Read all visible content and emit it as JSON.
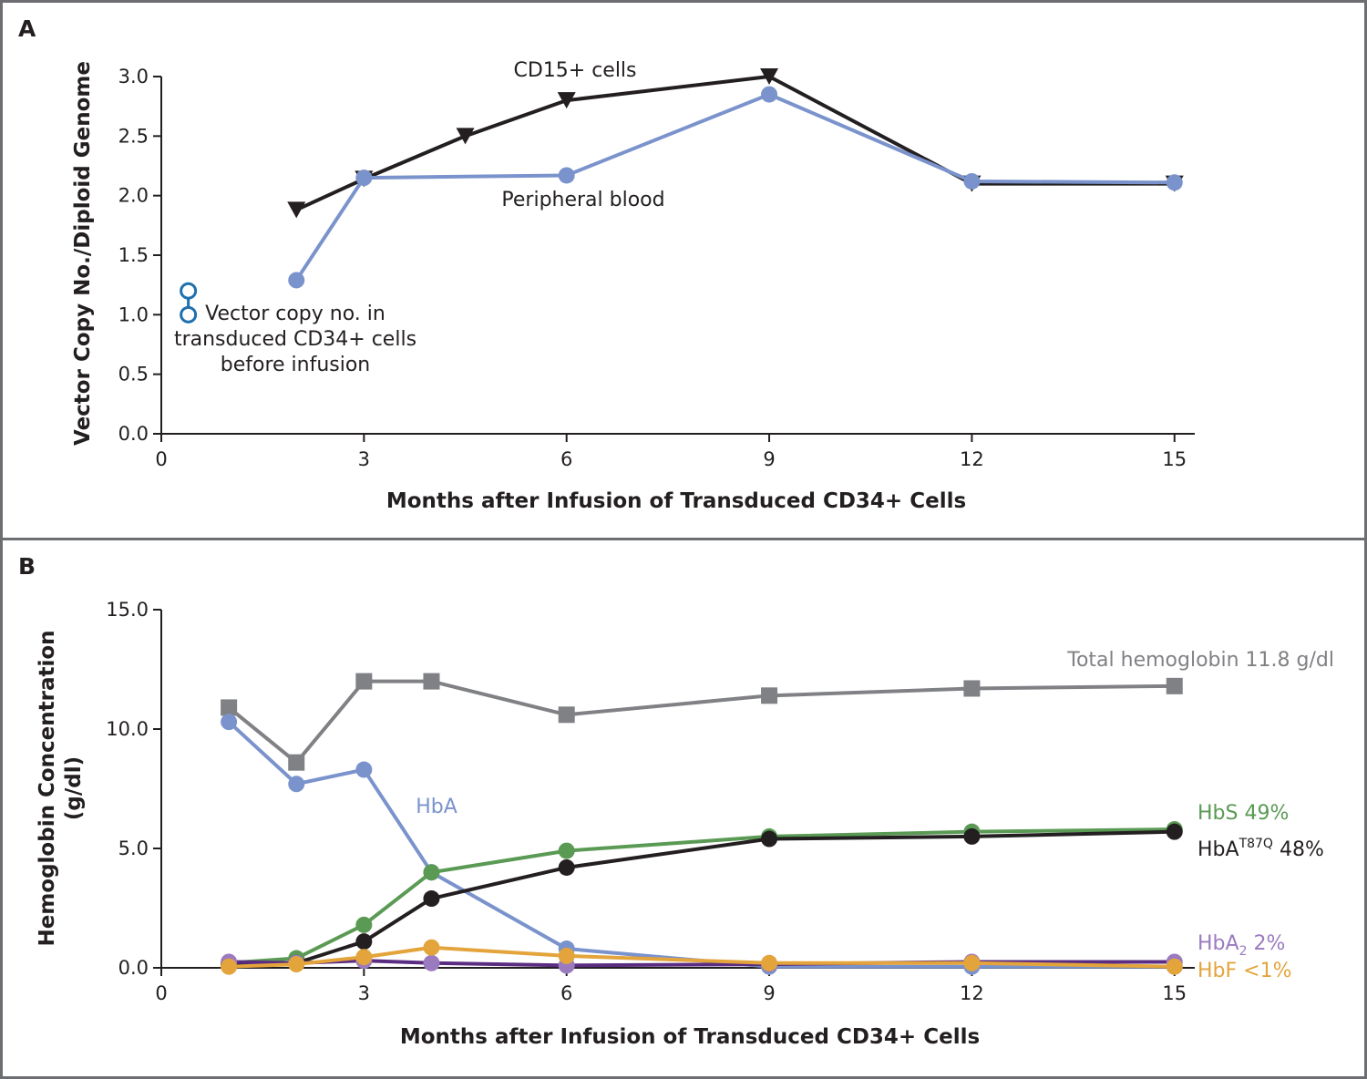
{
  "chart_data": [
    {
      "panel": "A",
      "type": "line",
      "xlabel": "Months after Infusion of Transduced CD34+ Cells",
      "ylabel": "Vector Copy No./Diploid Genome",
      "xlim": [
        0,
        15.3
      ],
      "ylim": [
        0,
        3.0
      ],
      "xticks": [
        0,
        3,
        6,
        9,
        12,
        15
      ],
      "yticks": [
        0.0,
        0.5,
        1.0,
        1.5,
        2.0,
        2.5,
        3.0
      ],
      "xtick_labels": [
        "0",
        "3",
        "6",
        "9",
        "12",
        "15"
      ],
      "ytick_labels": [
        "0.0",
        "0.5",
        "1.0",
        "1.5",
        "2.0",
        "2.5",
        "3.0"
      ],
      "series": [
        {
          "name": "CD15+ cells",
          "color": "#231f20",
          "marker": "triangle-down",
          "x": [
            2,
            3,
            4.5,
            6,
            9,
            12,
            15
          ],
          "y": [
            1.88,
            2.14,
            2.5,
            2.8,
            3.0,
            2.1,
            2.1
          ]
        },
        {
          "name": "Peripheral blood",
          "color": "#7b93cc",
          "marker": "circle",
          "x": [
            2,
            3,
            6,
            9,
            12,
            15
          ],
          "y": [
            1.29,
            2.15,
            2.17,
            2.85,
            2.12,
            2.11
          ]
        }
      ],
      "pre_infusion": {
        "color": "#1f6fad",
        "x": 0.4,
        "y": [
          1.0,
          1.2
        ],
        "label_lines": [
          "Vector copy no. in",
          "transduced CD34+ cells",
          "before infusion"
        ]
      },
      "labels": {
        "cd15": "CD15+ cells",
        "peripheral": "Peripheral blood"
      }
    },
    {
      "panel": "B",
      "type": "line",
      "xlabel": "Months after Infusion of Transduced CD34+ Cells",
      "ylabel_lines": [
        "Hemoglobin Concentration",
        "(g/dl)"
      ],
      "xlim": [
        0,
        15.3
      ],
      "ylim": [
        0,
        15.0
      ],
      "xticks": [
        0,
        3,
        6,
        9,
        12,
        15
      ],
      "yticks": [
        0.0,
        5.0,
        10.0,
        15.0
      ],
      "xtick_labels": [
        "0",
        "3",
        "6",
        "9",
        "12",
        "15"
      ],
      "ytick_labels": [
        "0.0",
        "5.0",
        "10.0",
        "15.0"
      ],
      "series": [
        {
          "name": "Total hemoglobin 11.8 g/dl",
          "color": "#808184",
          "marker": "square",
          "x": [
            1,
            2,
            3,
            4,
            6,
            9,
            12,
            15
          ],
          "y": [
            10.9,
            8.6,
            12.0,
            12.0,
            10.6,
            11.4,
            11.7,
            11.8
          ]
        },
        {
          "name": "HbA",
          "color": "#7b93cc",
          "marker": "circle",
          "x": [
            1,
            2,
            3,
            4,
            6,
            9,
            12,
            15
          ],
          "y": [
            10.3,
            7.7,
            8.3,
            4.0,
            0.8,
            0.05,
            0.05,
            0.05
          ]
        },
        {
          "name": "HbS 49%",
          "color": "#5a9a54",
          "marker": "circle",
          "x": [
            1,
            2,
            3,
            4,
            6,
            9,
            12,
            15
          ],
          "y": [
            0.2,
            0.4,
            1.8,
            4.0,
            4.9,
            5.5,
            5.7,
            5.8
          ]
        },
        {
          "name": "HbA T87Q 48%",
          "color": "#231f20",
          "marker": "circle",
          "x": [
            1,
            2,
            3,
            4,
            6,
            9,
            12,
            15
          ],
          "y": [
            0.15,
            0.2,
            1.1,
            2.9,
            4.2,
            5.4,
            5.5,
            5.7
          ]
        },
        {
          "name": "HbA2 2%",
          "color": "#5b2d82",
          "marker_color": "#9b7bbf",
          "marker": "circle",
          "x": [
            1,
            2,
            3,
            4,
            6,
            9,
            12,
            15
          ],
          "y": [
            0.25,
            0.2,
            0.3,
            0.2,
            0.1,
            0.15,
            0.25,
            0.25
          ]
        },
        {
          "name": "HbF <1%",
          "color": "#e3a43c",
          "marker": "circle",
          "x": [
            1,
            2,
            3,
            4,
            6,
            9,
            12,
            15
          ],
          "y": [
            0.05,
            0.15,
            0.45,
            0.85,
            0.5,
            0.2,
            0.2,
            0.05
          ]
        }
      ],
      "labels": {
        "total": "Total hemoglobin 11.8 g/dl",
        "hba": "HbA",
        "hbs": "HbS 49%",
        "hbat87q_main": "HbA",
        "hbat87q_sup": "T87Q",
        "hbat87q_pct": " 48%",
        "hba2_main": "HbA",
        "hba2_sub": "2",
        "hba2_pct": " 2%",
        "hbf": "HbF <1%"
      }
    }
  ],
  "panel_a": {
    "letter": "A"
  },
  "panel_b": {
    "letter": "B"
  }
}
